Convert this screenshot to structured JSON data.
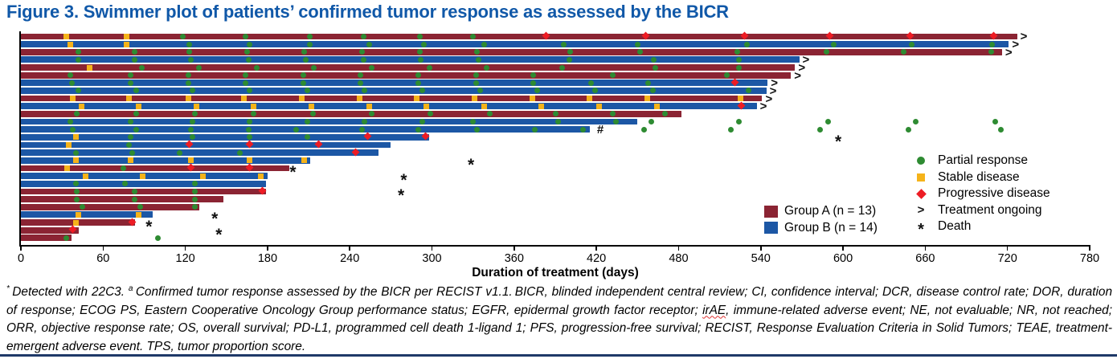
{
  "title": "Figure 3. Swimmer plot of patients’ confirmed tumor response as assessed by the BICR",
  "chart_data": {
    "type": "bar",
    "variant": "swimmer-plot",
    "orientation": "horizontal",
    "title": "Figure 3. Swimmer plot of patients’ confirmed tumor response as assessed by the BICR",
    "xlabel": "Duration of treatment (days)",
    "xlim": [
      0,
      780
    ],
    "x_ticks": [
      0,
      60,
      120,
      180,
      240,
      300,
      360,
      420,
      480,
      540,
      600,
      660,
      720,
      780
    ],
    "grid": false,
    "legend_position": "inside-right",
    "colors": {
      "group_a": "#8B2433",
      "group_b": "#1C57A5",
      "partial_response": "#2E8B32",
      "stable_disease": "#F5B31A",
      "progressive_disease": "#ED1C24",
      "title_blue": "#1058A8",
      "bottom_rule": "#1F3968"
    },
    "legend_groups": [
      {
        "key": "A",
        "label": "Group A (n = 13)"
      },
      {
        "key": "B",
        "label": "Group B (n = 14)"
      }
    ],
    "legend_markers": [
      {
        "symbol": "circle",
        "label": "Partial response"
      },
      {
        "symbol": "square",
        "label": "Stable disease"
      },
      {
        "symbol": "diamond",
        "label": "Progressive disease"
      },
      {
        "symbol": "arrow",
        "label": "Treatment ongoing"
      },
      {
        "symbol": "asterisk",
        "label": "Death"
      }
    ],
    "lanes": [
      {
        "group": "A",
        "end": 727,
        "ongoing": true,
        "sd": [
          33,
          77
        ],
        "pr": [
          118,
          164,
          211,
          250,
          291,
          330
        ],
        "pd": [
          383,
          456,
          528,
          590,
          649,
          710
        ]
      },
      {
        "group": "B",
        "end": 721,
        "ongoing": true,
        "sd": [
          36,
          77
        ],
        "pr": [
          123,
          167,
          211,
          254,
          294,
          338,
          396,
          450,
          530,
          593,
          650,
          709
        ]
      },
      {
        "group": "A",
        "end": 716,
        "ongoing": true,
        "pr": [
          42,
          83,
          123,
          165,
          207,
          249,
          291,
          333,
          401,
          452,
          523,
          588,
          644,
          708
        ]
      },
      {
        "group": "B",
        "end": 568,
        "ongoing": true,
        "pr": [
          42,
          83,
          124,
          166,
          208,
          250,
          292,
          334,
          400,
          462,
          524
        ]
      },
      {
        "group": "A",
        "end": 565,
        "ongoing": true,
        "sd": [
          50
        ],
        "pr": [
          88,
          130,
          172,
          214,
          256,
          298,
          340,
          395,
          463,
          524
        ]
      },
      {
        "group": "A",
        "end": 562,
        "ongoing": true,
        "pr": [
          36,
          80,
          122,
          164,
          206,
          248,
          290,
          332,
          374,
          432,
          515
        ]
      },
      {
        "group": "B",
        "end": 545,
        "ongoing": true,
        "pr": [
          37,
          80,
          122,
          164,
          206,
          248,
          290,
          332,
          374,
          416,
          458
        ],
        "pd": [
          521
        ]
      },
      {
        "group": "B",
        "end": 544,
        "ongoing": true,
        "pr": [
          42,
          84,
          125,
          167,
          209,
          251,
          293,
          335,
          377,
          419,
          461,
          531
        ]
      },
      {
        "group": "A",
        "end": 541,
        "ongoing": true,
        "sd": [
          38,
          79,
          122,
          163,
          205,
          247,
          289,
          331,
          373,
          415,
          457,
          525
        ]
      },
      {
        "group": "B",
        "end": 537,
        "ongoing": true,
        "sd": [
          44,
          86,
          128,
          170,
          212,
          254,
          296,
          338,
          380,
          422,
          464
        ],
        "pd": [
          526
        ]
      },
      {
        "group": "A",
        "end": 482,
        "pr": [
          41,
          84,
          127,
          170,
          213,
          256,
          299,
          342,
          390,
          432,
          470
        ]
      },
      {
        "group": "B",
        "end": 450,
        "pr": [
          36,
          80,
          125,
          167,
          209,
          251,
          293,
          330,
          392,
          434,
          460,
          524,
          589,
          653,
          711
        ]
      },
      {
        "group": "B",
        "end": 415,
        "hash": 421,
        "pr": [
          38,
          84,
          124,
          166,
          201,
          249,
          290,
          333,
          375,
          410,
          455,
          518,
          583,
          648,
          715
        ]
      },
      {
        "group": "B",
        "end": 298,
        "death": 597,
        "sd": [
          40
        ],
        "pr": [
          80,
          125,
          167,
          209
        ],
        "pd": [
          253,
          295
        ]
      },
      {
        "group": "B",
        "end": 270,
        "sd": [
          35
        ],
        "pr": [
          79
        ],
        "pd": [
          123,
          167,
          217
        ]
      },
      {
        "group": "B",
        "end": 261,
        "pr": [
          40,
          81,
          116,
          160
        ],
        "pd": [
          244
        ]
      },
      {
        "group": "B",
        "end": 211,
        "death": 329,
        "sd": [
          40,
          80,
          124,
          167,
          207
        ]
      },
      {
        "group": "A",
        "end": 196,
        "death": 199,
        "sd": [
          34
        ],
        "pr": [
          75
        ],
        "pd": [
          124,
          167
        ]
      },
      {
        "group": "B",
        "end": 180,
        "death": 280,
        "sd": [
          47,
          89,
          133,
          175
        ]
      },
      {
        "group": "B",
        "end": 179,
        "pr": [
          40,
          76,
          127
        ]
      },
      {
        "group": "A",
        "end": 179,
        "death": 278,
        "pr": [
          41,
          83,
          127
        ],
        "pd": [
          176
        ]
      },
      {
        "group": "A",
        "end": 148,
        "pr": [
          41,
          83,
          127
        ]
      },
      {
        "group": "A",
        "end": 130,
        "pr": [
          45,
          87,
          127
        ]
      },
      {
        "group": "B",
        "end": 96,
        "death": 142,
        "sd": [
          42,
          86
        ]
      },
      {
        "group": "A",
        "end": 83,
        "death": 94,
        "sd": [
          40
        ],
        "pd": [
          81
        ]
      },
      {
        "group": "A",
        "end": 42,
        "death": 145,
        "pd": [
          38
        ]
      },
      {
        "group": "A",
        "end": 37,
        "pr": [
          33,
          100
        ]
      }
    ]
  },
  "footnote": {
    "segments": [
      {
        "text": "* ",
        "sup": true
      },
      {
        "text": "Detected with 22C3. "
      },
      {
        "text": "a ",
        "sup": true
      },
      {
        "text": "Confirmed tumor response assessed by the BICR per RECIST v1.1. BICR, blinded independent central review; CI, confidence interval; DCR, disease control rate; DOR, duration of response; ECOG PS, Eastern Cooperative Oncology Group performance status; EGFR, epidermal growth factor receptor; "
      },
      {
        "text": "irAE",
        "squiggle": true
      },
      {
        "text": ", immune-related adverse event; NE, not evaluable; NR, not reached; ORR, objective response rate; OS, overall survival; PD-L1, programmed cell death 1-ligand 1; PFS, progression-free survival; RECIST, Response Evaluation Criteria in Solid Tumors; TEAE, treatment-emergent adverse event. TPS, tumor proportion score."
      }
    ]
  }
}
